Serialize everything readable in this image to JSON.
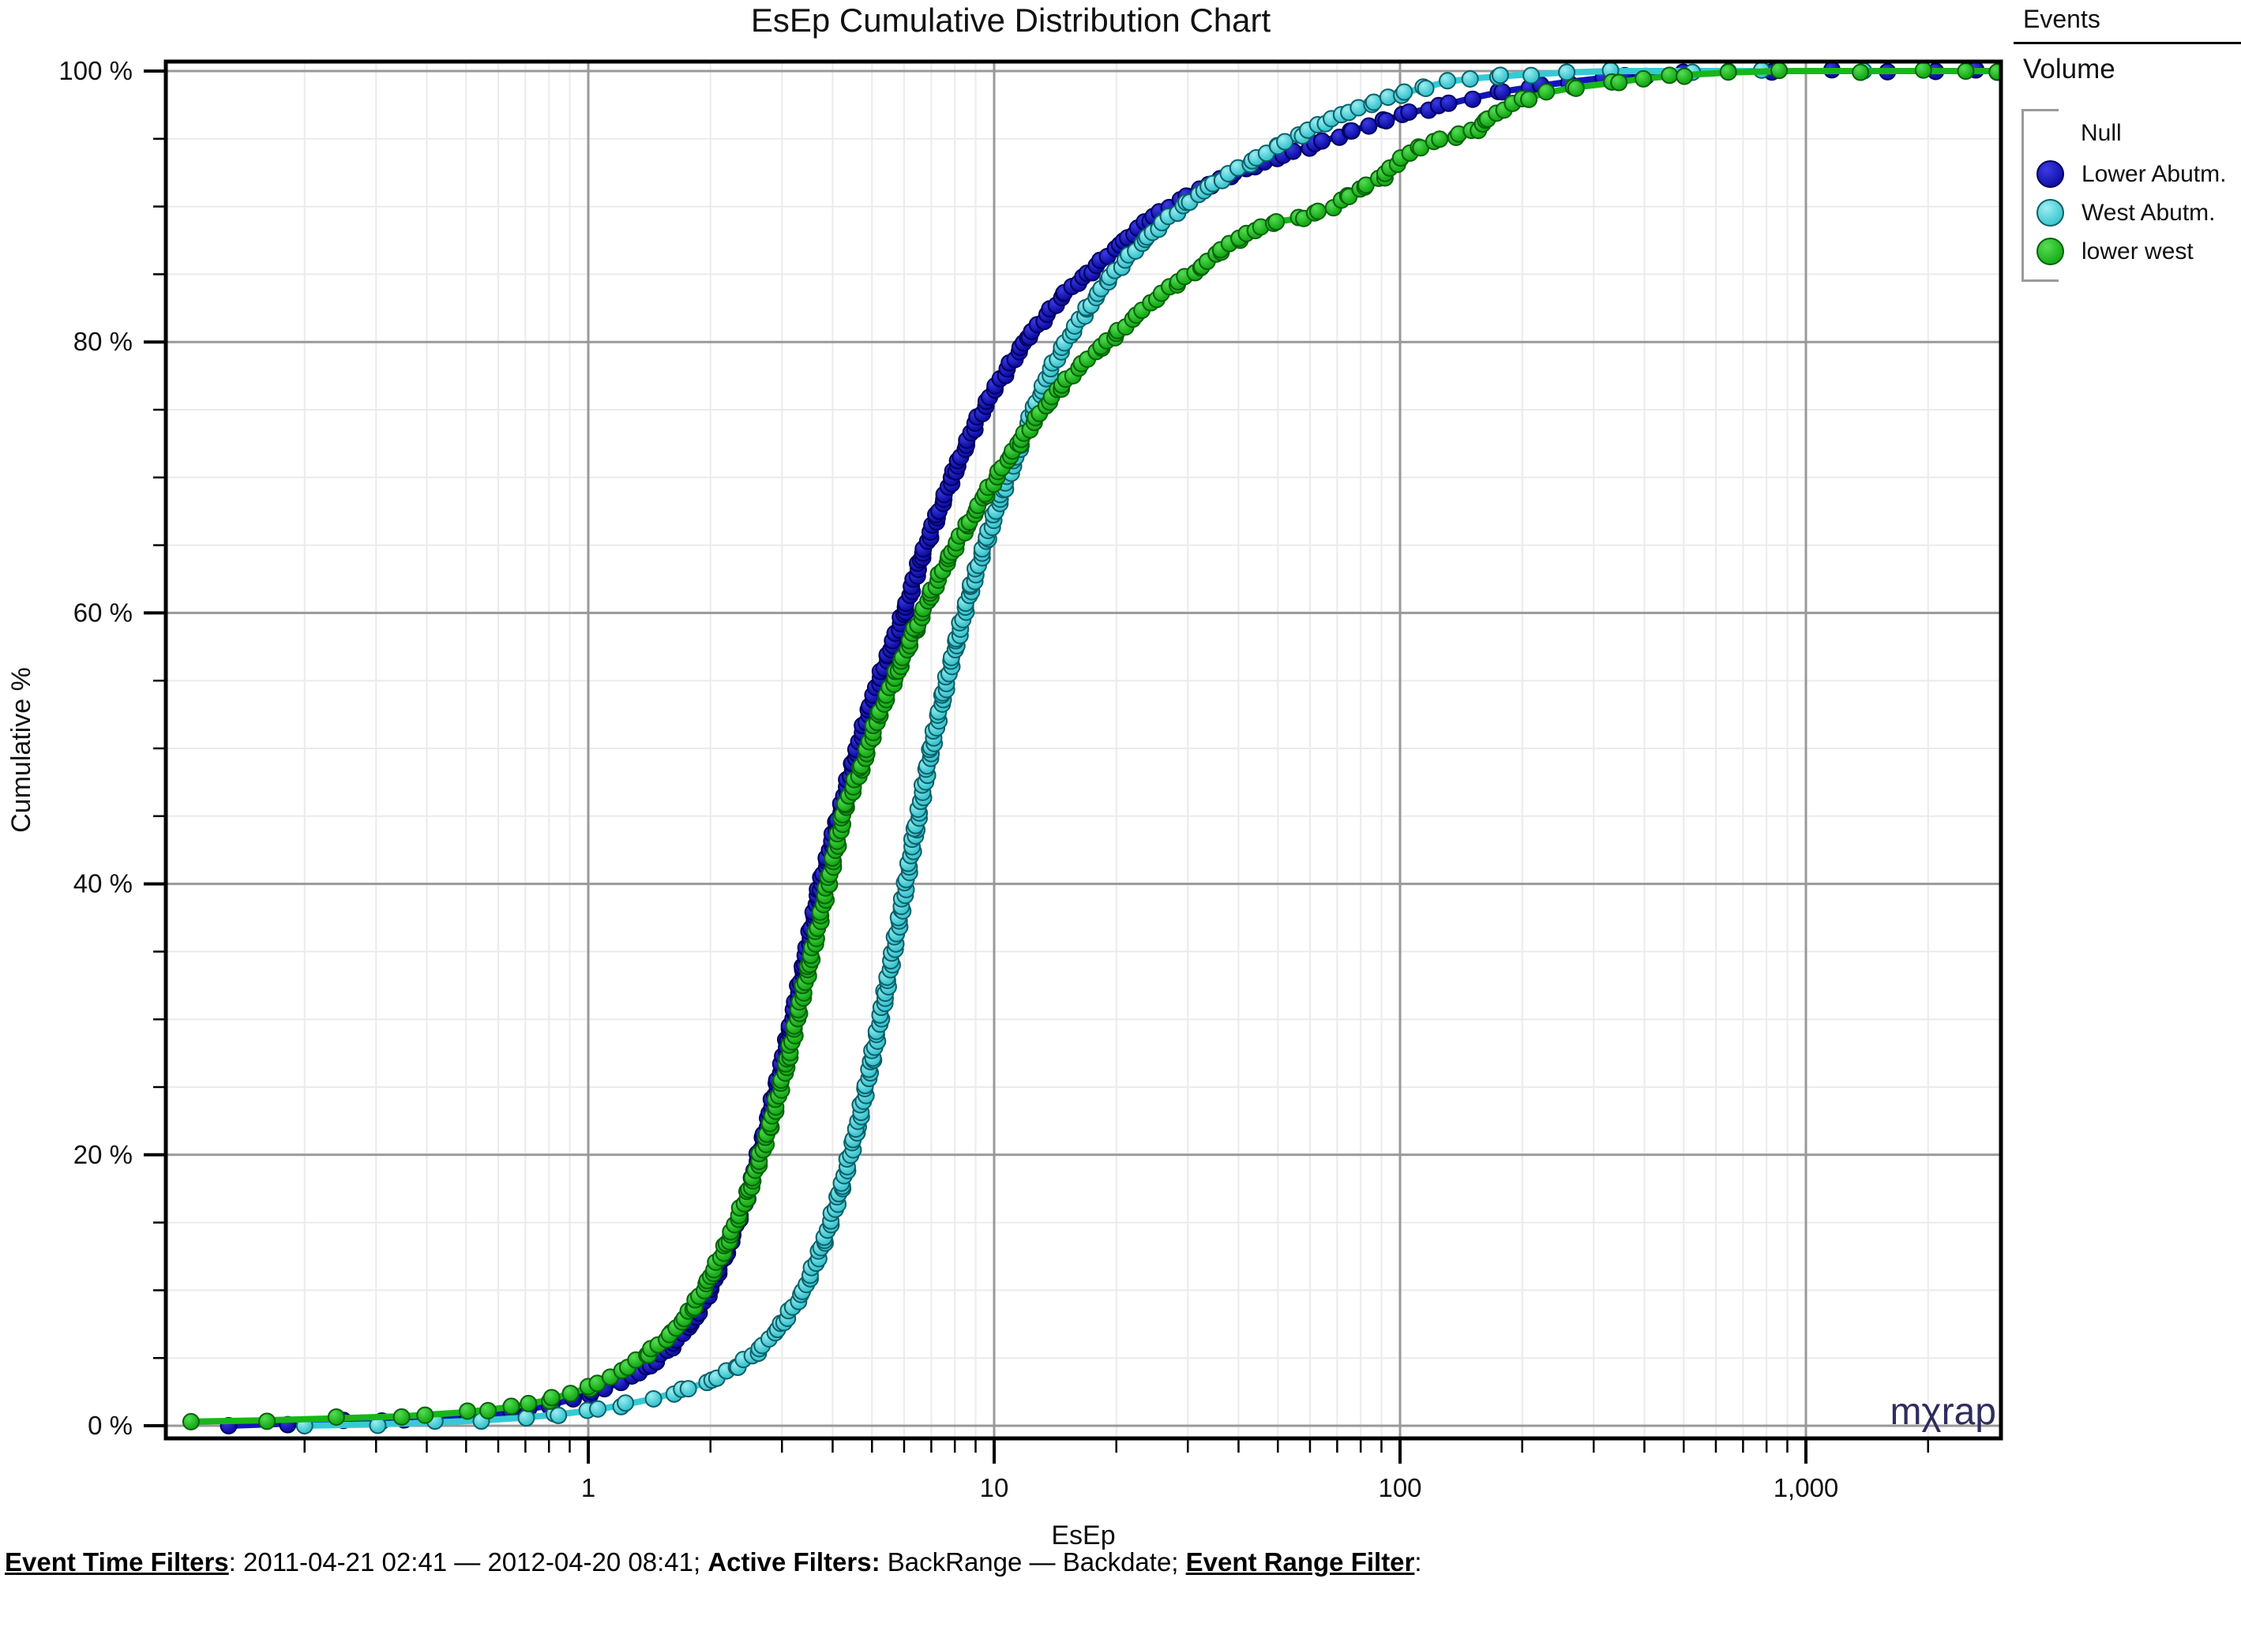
{
  "title": "EsEp Cumulative Distribution Chart",
  "watermark": {
    "text": "mχrap",
    "color": "#2e2d5c"
  },
  "legend": {
    "title": "Events",
    "subtitle": "Volume",
    "group_header": "Null",
    "items": [
      {
        "label": "Lower Abutm.",
        "color": "#1010a8",
        "color_light": "#3b3be4",
        "stroke": "#00005f",
        "line_color": "#1414be"
      },
      {
        "label": "West Abutm.",
        "color": "#3cc6d0",
        "color_light": "#9ceef0",
        "stroke": "#0c5f68",
        "line_color": "#35cbd4"
      },
      {
        "label": "lower west",
        "color": "#17ad17",
        "color_light": "#55dd55",
        "stroke": "#07610a",
        "line_color": "#19b619"
      }
    ]
  },
  "footer": {
    "segments": [
      {
        "text": "Event Time Filters",
        "bold": true,
        "underline": true
      },
      {
        "text": ": 2011-04-21 02:41 — 2012-04-20 08:41; ",
        "bold": false,
        "underline": false
      },
      {
        "text": "Active Filters:",
        "bold": true,
        "underline": false
      },
      {
        "text": " BackRange — Backdate; ",
        "bold": false,
        "underline": false
      },
      {
        "text": "Event Range Filter",
        "bold": true,
        "underline": true
      },
      {
        "text": ":",
        "bold": false,
        "underline": false
      }
    ]
  },
  "chart_data": {
    "type": "line",
    "variant": "cumulative-distribution",
    "title": "EsEp Cumulative Distribution Chart",
    "xlabel": "EsEp",
    "ylabel": "Cumulative %",
    "x_scale": "log",
    "xlim": [
      0.09,
      3020
    ],
    "ylim_pct": [
      -0.9,
      100.7
    ],
    "grid": {
      "minor_color": "#ebebeb",
      "major_color": "#999999",
      "minor_pct_step": 5,
      "major_pct_step": 20
    },
    "x_ticks": [
      {
        "v": 1,
        "label": "1"
      },
      {
        "v": 10,
        "label": "10"
      },
      {
        "v": 100,
        "label": "100"
      },
      {
        "v": 1000,
        "label": "1,000"
      }
    ],
    "y_ticks": [
      {
        "v": 0,
        "label": "0 %"
      },
      {
        "v": 20,
        "label": "20 %"
      },
      {
        "v": 40,
        "label": "40 %"
      },
      {
        "v": 60,
        "label": "60 %"
      },
      {
        "v": 80,
        "label": "80 %"
      },
      {
        "v": 100,
        "label": "100 %"
      }
    ],
    "series": [
      {
        "name": "Lower Abutm.",
        "points_x_pct": [
          [
            0.13,
            0
          ],
          [
            0.18,
            0.15
          ],
          [
            0.25,
            0.3
          ],
          [
            0.35,
            0.45
          ],
          [
            0.5,
            0.7
          ],
          [
            0.65,
            1.0
          ],
          [
            0.8,
            1.5
          ],
          [
            1.0,
            2.3
          ],
          [
            1.2,
            3.2
          ],
          [
            1.4,
            4.3
          ],
          [
            1.6,
            5.8
          ],
          [
            1.8,
            7.6
          ],
          [
            2.0,
            10
          ],
          [
            2.2,
            13
          ],
          [
            2.5,
            17.5
          ],
          [
            2.8,
            23
          ],
          [
            3.1,
            28.5
          ],
          [
            3.4,
            34
          ],
          [
            3.7,
            39.5
          ],
          [
            4.1,
            44.5
          ],
          [
            4.5,
            49
          ],
          [
            5.0,
            53.5
          ],
          [
            5.5,
            57
          ],
          [
            6.0,
            60
          ],
          [
            6.6,
            64
          ],
          [
            7.2,
            67
          ],
          [
            8.0,
            70.5
          ],
          [
            9.0,
            74
          ],
          [
            10,
            76.5
          ],
          [
            11,
            78.4
          ],
          [
            12,
            80.2
          ],
          [
            13.5,
            82
          ],
          [
            15,
            83.7
          ],
          [
            17,
            85
          ],
          [
            19,
            86.4
          ],
          [
            21,
            87.5
          ],
          [
            24,
            89
          ],
          [
            27,
            90
          ],
          [
            30,
            90.8
          ],
          [
            34,
            91.6
          ],
          [
            38,
            92.3
          ],
          [
            44,
            93
          ],
          [
            52,
            93.8
          ],
          [
            62,
            94.6
          ],
          [
            75,
            95.5
          ],
          [
            90,
            96.3
          ],
          [
            105,
            96.9
          ],
          [
            125,
            97.4
          ],
          [
            150,
            98
          ],
          [
            180,
            98.5
          ],
          [
            220,
            98.9
          ],
          [
            260,
            99.2
          ],
          [
            320,
            99.5
          ],
          [
            400,
            99.7
          ],
          [
            500,
            99.85
          ],
          [
            650,
            99.95
          ],
          [
            820,
            100
          ],
          [
            1150,
            100
          ],
          [
            1600,
            100
          ],
          [
            2100,
            100
          ],
          [
            2600,
            100
          ],
          [
            2950,
            100
          ]
        ]
      },
      {
        "name": "West Abutm.",
        "points_x_pct": [
          [
            0.2,
            0
          ],
          [
            0.3,
            0.1
          ],
          [
            0.42,
            0.25
          ],
          [
            0.55,
            0.4
          ],
          [
            0.7,
            0.6
          ],
          [
            0.85,
            0.85
          ],
          [
            1.0,
            1.1
          ],
          [
            1.2,
            1.5
          ],
          [
            1.45,
            2.0
          ],
          [
            1.7,
            2.6
          ],
          [
            2.0,
            3.3
          ],
          [
            2.3,
            4.3
          ],
          [
            2.6,
            5.4
          ],
          [
            3.0,
            7.5
          ],
          [
            3.4,
            10
          ],
          [
            3.8,
            13.5
          ],
          [
            4.2,
            17.5
          ],
          [
            4.6,
            22
          ],
          [
            5.0,
            27
          ],
          [
            5.4,
            32
          ],
          [
            5.9,
            38
          ],
          [
            6.4,
            44
          ],
          [
            7.0,
            50
          ],
          [
            7.5,
            54
          ],
          [
            8.1,
            58
          ],
          [
            8.8,
            62
          ],
          [
            9.6,
            65.5
          ],
          [
            10.5,
            69
          ],
          [
            11.5,
            72
          ],
          [
            12.5,
            75
          ],
          [
            13.8,
            78
          ],
          [
            15,
            80
          ],
          [
            17,
            82.5
          ],
          [
            19,
            84.5
          ],
          [
            21,
            86
          ],
          [
            24,
            87.8
          ],
          [
            27,
            89.2
          ],
          [
            30,
            90.3
          ],
          [
            34,
            91.5
          ],
          [
            38,
            92.4
          ],
          [
            43,
            93.3
          ],
          [
            50,
            94.5
          ],
          [
            57,
            95.3
          ],
          [
            65,
            96.2
          ],
          [
            75,
            97
          ],
          [
            87,
            97.7
          ],
          [
            100,
            98.3
          ],
          [
            115,
            98.8
          ],
          [
            130,
            99.2
          ],
          [
            150,
            99.45
          ],
          [
            175,
            99.6
          ],
          [
            210,
            99.75
          ],
          [
            260,
            99.9
          ],
          [
            330,
            100
          ],
          [
            520,
            100
          ],
          [
            780,
            100
          ],
          [
            1400,
            100
          ],
          [
            2950,
            100
          ]
        ]
      },
      {
        "name": "lower west",
        "points_x_pct": [
          [
            0.105,
            0.3
          ],
          [
            0.16,
            0.4
          ],
          [
            0.24,
            0.55
          ],
          [
            0.35,
            0.7
          ],
          [
            0.5,
            1.0
          ],
          [
            0.65,
            1.4
          ],
          [
            0.8,
            1.9
          ],
          [
            1.0,
            2.8
          ],
          [
            1.2,
            4.0
          ],
          [
            1.4,
            5.3
          ],
          [
            1.6,
            6.8
          ],
          [
            1.8,
            8.6
          ],
          [
            2.0,
            11
          ],
          [
            2.2,
            13.5
          ],
          [
            2.5,
            17.5
          ],
          [
            2.8,
            22
          ],
          [
            3.1,
            27
          ],
          [
            3.5,
            34
          ],
          [
            3.9,
            40
          ],
          [
            4.3,
            45.8
          ],
          [
            4.7,
            48.5
          ],
          [
            5.2,
            52.5
          ],
          [
            5.8,
            55.8
          ],
          [
            6.4,
            58.8
          ],
          [
            7.0,
            61.5
          ],
          [
            7.8,
            64.3
          ],
          [
            8.6,
            66.5
          ],
          [
            9.5,
            68.7
          ],
          [
            10.5,
            70.8
          ],
          [
            11.5,
            72.5
          ],
          [
            13,
            74.8
          ],
          [
            14.5,
            76.6
          ],
          [
            16.5,
            78.4
          ],
          [
            18.5,
            79.7
          ],
          [
            20,
            80.6
          ],
          [
            22.5,
            82
          ],
          [
            25,
            83.2
          ],
          [
            28,
            84.3
          ],
          [
            32,
            85.4
          ],
          [
            36,
            86.7
          ],
          [
            40,
            87.6
          ],
          [
            44,
            88.3
          ],
          [
            50,
            88.9
          ],
          [
            56,
            89.1
          ],
          [
            62,
            89.5
          ],
          [
            68,
            90
          ],
          [
            75,
            90.8
          ],
          [
            82,
            91.5
          ],
          [
            91,
            92.2
          ],
          [
            100,
            93.5
          ],
          [
            110,
            94.3
          ],
          [
            125,
            94.9
          ],
          [
            140,
            95.3
          ],
          [
            155,
            95.7
          ],
          [
            165,
            96.5
          ],
          [
            180,
            97.2
          ],
          [
            200,
            97.9
          ],
          [
            230,
            98.4
          ],
          [
            270,
            98.8
          ],
          [
            330,
            99.1
          ],
          [
            400,
            99.45
          ],
          [
            500,
            99.7
          ],
          [
            650,
            99.9
          ],
          [
            860,
            100
          ],
          [
            1350,
            100
          ],
          [
            1950,
            100
          ],
          [
            2500,
            100
          ],
          [
            2950,
            100
          ]
        ]
      }
    ]
  }
}
